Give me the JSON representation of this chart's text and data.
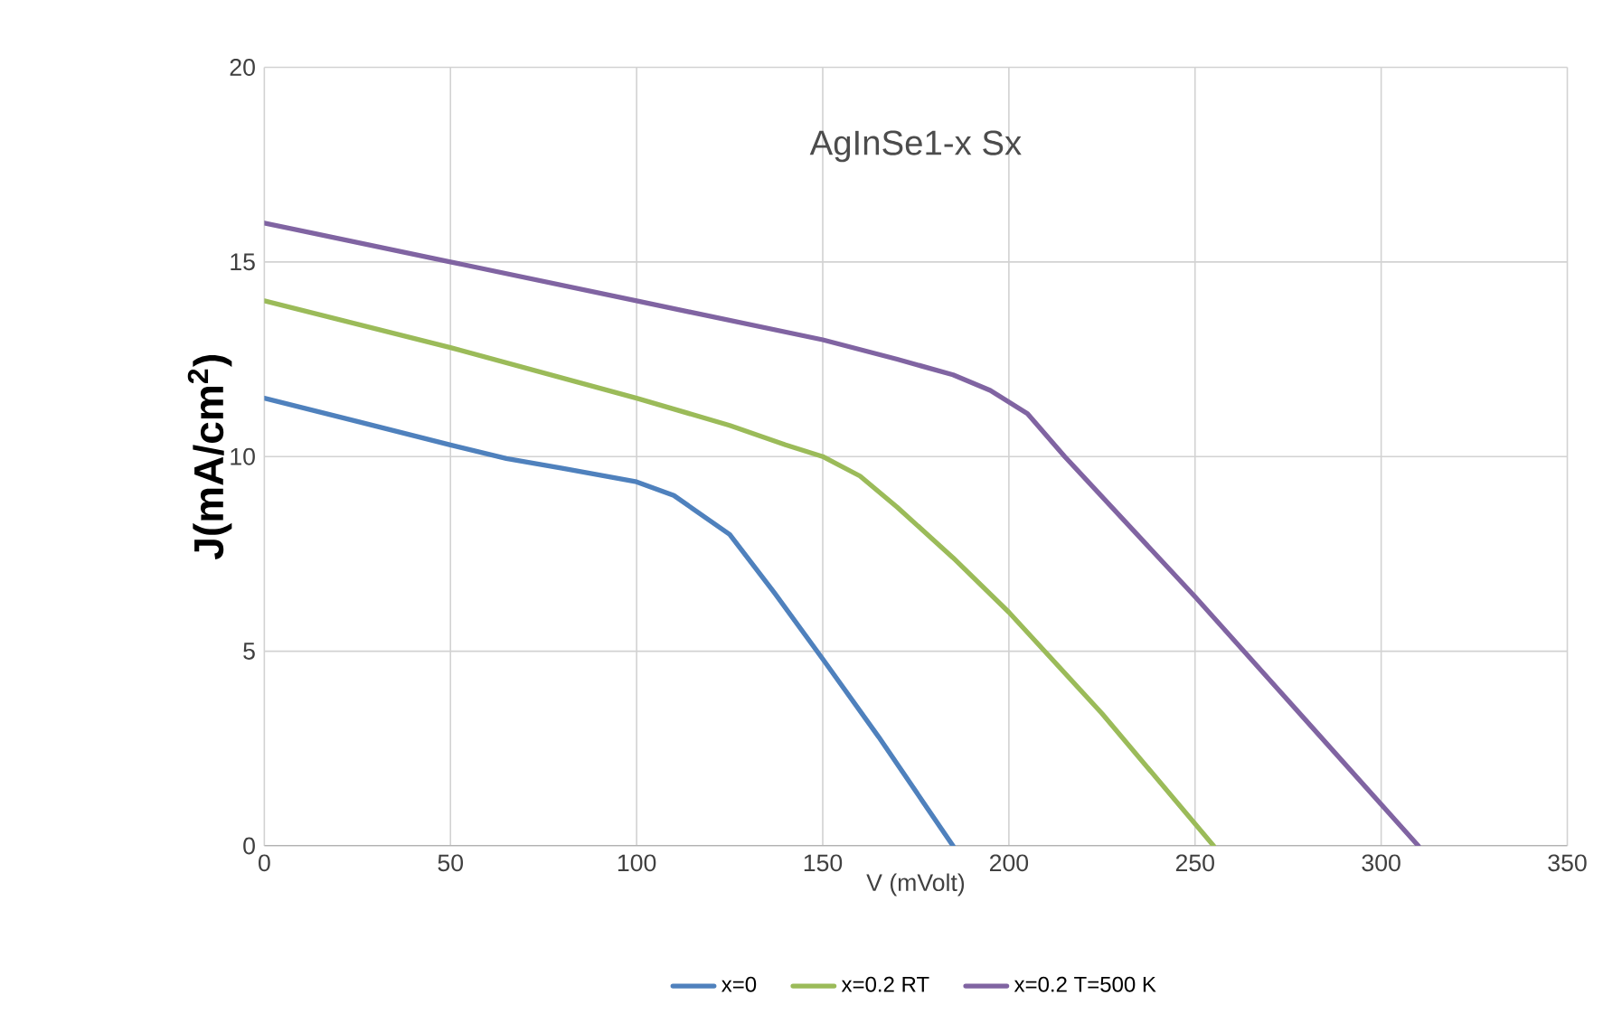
{
  "chart_data": {
    "type": "line",
    "title": "AgInSe1-x Sx",
    "xlabel": "V (mVolt)",
    "ylabel": "J(mA/cm$^{2}$)",
    "xlim": [
      0,
      350
    ],
    "ylim": [
      0,
      20
    ],
    "xticks": [
      0,
      50,
      100,
      150,
      200,
      250,
      300,
      350
    ],
    "yticks": [
      0,
      5,
      10,
      15,
      20
    ],
    "grid": true,
    "legend": "bottom",
    "marker": "none",
    "line_style": "solid",
    "series": [
      {
        "name": "x=0",
        "color": "#4f81bd",
        "x": [
          0,
          25,
          50,
          65,
          80,
          100,
          110,
          125,
          137,
          150,
          165,
          185
        ],
        "values": [
          11.5,
          10.9,
          10.3,
          9.95,
          9.7,
          9.35,
          9.0,
          8.0,
          6.5,
          4.8,
          2.8,
          0
        ]
      },
      {
        "name": "x=0.2  RT",
        "color": "#9bbb59",
        "x": [
          0,
          50,
          100,
          125,
          140,
          150,
          160,
          170,
          185,
          200,
          225,
          255
        ],
        "values": [
          14,
          12.8,
          11.5,
          10.8,
          10.3,
          10,
          9.5,
          8.7,
          7.4,
          6,
          3.4,
          0
        ]
      },
      {
        "name": "x=0.2 T=500 K",
        "color": "#8064a2",
        "x": [
          0,
          50,
          100,
          150,
          170,
          185,
          195,
          205,
          215,
          250,
          280,
          310
        ],
        "values": [
          16,
          15,
          14,
          13,
          12.5,
          12.1,
          11.7,
          11.1,
          10,
          6.4,
          3.2,
          0
        ]
      }
    ]
  }
}
